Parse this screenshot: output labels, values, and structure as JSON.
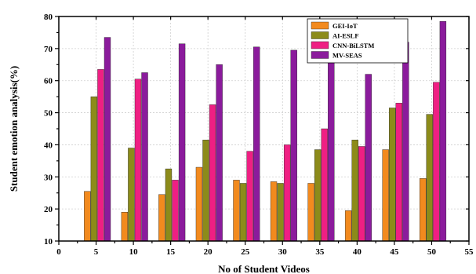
{
  "chart_data": {
    "type": "bar",
    "xlabel": "No of Student Videos",
    "ylabel": "Student emotion analysis(%)",
    "xlim": [
      0,
      55
    ],
    "ylim": [
      10,
      80
    ],
    "x_ticks": [
      "0",
      "5",
      "10",
      "15",
      "20",
      "25",
      "30",
      "35",
      "40",
      "45",
      "50",
      "55"
    ],
    "y_ticks": [
      "10",
      "20",
      "30",
      "40",
      "50",
      "60",
      "70",
      "80"
    ],
    "x": [
      5,
      10,
      15,
      20,
      25,
      30,
      35,
      40,
      45,
      50
    ],
    "grid": true,
    "legend_position": "top-right",
    "series": [
      {
        "name": "GEI-IoT",
        "color": "#f28a1e",
        "values": [
          25.5,
          19,
          24.5,
          33,
          29,
          28.5,
          28,
          19.5,
          38.5,
          29.5
        ]
      },
      {
        "name": "AI-ESLF",
        "color": "#8c8b1a",
        "values": [
          55,
          39,
          32.5,
          41.5,
          28,
          28,
          38.5,
          41.5,
          51.5,
          49.5
        ]
      },
      {
        "name": "CNN-BiLSTM",
        "color": "#ef1f83",
        "values": [
          63.5,
          60.5,
          29,
          52.5,
          38,
          40,
          45,
          39.5,
          53,
          59.5
        ]
      },
      {
        "name": "MV-SEAS",
        "color": "#8b1b9c",
        "values": [
          73.5,
          62.5,
          71.5,
          65,
          70.5,
          69.5,
          65.5,
          62,
          72,
          78.5
        ]
      }
    ]
  }
}
